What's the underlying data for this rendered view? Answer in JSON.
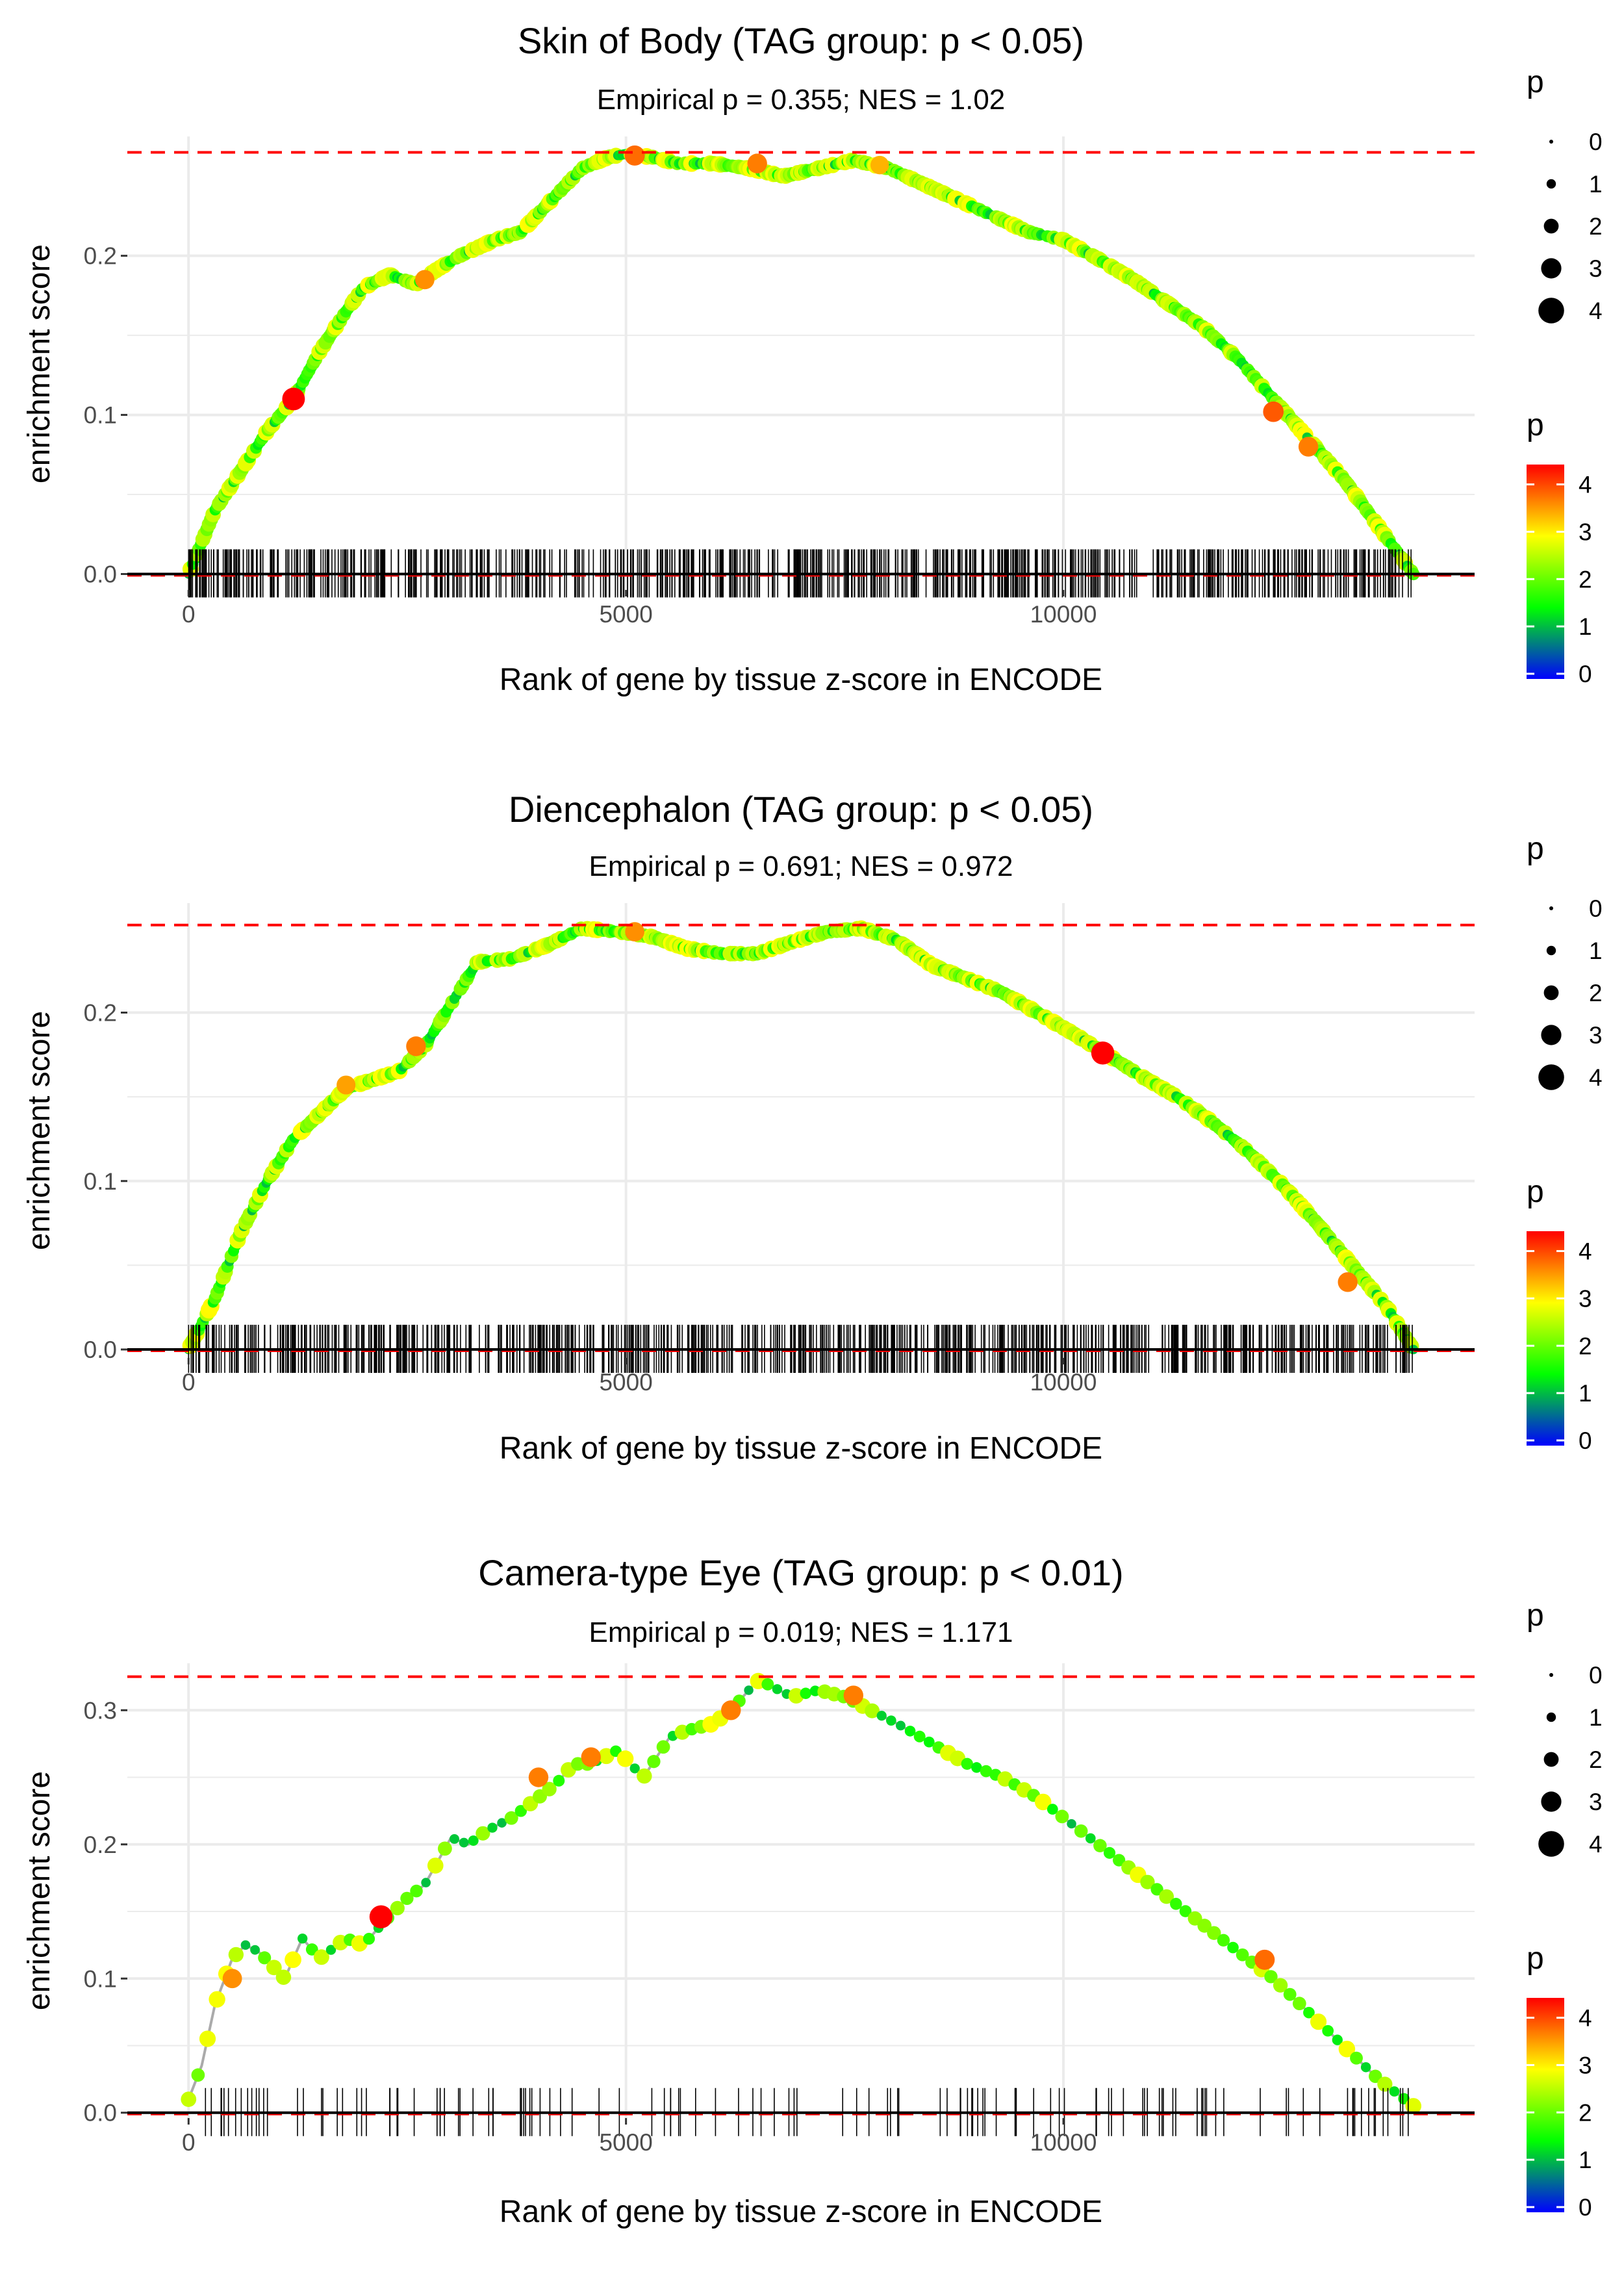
{
  "colors": {
    "background": "#ffffff",
    "grid": "#ebebeb",
    "max_line": "#ff0000",
    "baseline": "#000000",
    "running_line": "#aaaaaa",
    "colorbar_stops": [
      "#0000ff",
      "#00ff00",
      "#ffff00",
      "#ff0000"
    ]
  },
  "legend": {
    "size_title": "p",
    "size_labels": [
      "0",
      "1",
      "2",
      "3",
      "4"
    ],
    "color_title": "p",
    "color_labels": [
      "0",
      "1",
      "2",
      "3",
      "4"
    ]
  },
  "chart_data": [
    {
      "type": "line",
      "title": "Skin of Body (TAG group: p < 0.05)",
      "subtitle": "Empirical p = 0.355; NES = 1.02",
      "xlabel": "Rank of gene by tissue z-score in ENCODE",
      "ylabel": "enrichment score",
      "xlim": [
        -700,
        14700
      ],
      "ylim": [
        -0.01,
        0.275
      ],
      "xticks": [
        0,
        5000,
        10000
      ],
      "xtick_labels": [
        "0",
        "5000",
        "10000"
      ],
      "yticks": [
        0,
        0.1,
        0.2
      ],
      "ytick_labels": [
        "0.0",
        "0.1",
        "0.2"
      ],
      "max_es": 0.265,
      "series": [
        {
          "name": "running enrichment score",
          "x": [
            0,
            300,
            600,
            900,
            1200,
            1500,
            1800,
            2000,
            2300,
            2600,
            2800,
            3100,
            3500,
            3800,
            4200,
            4500,
            4800,
            5000,
            5300,
            5600,
            6000,
            6400,
            6800,
            7200,
            7600,
            8000,
            8400,
            8800,
            9200,
            9600,
            10000,
            10400,
            10800,
            11200,
            11600,
            12000,
            12400,
            12800,
            13200,
            13600,
            14000
          ],
          "y": [
            0.0,
            0.04,
            0.065,
            0.09,
            0.11,
            0.14,
            0.165,
            0.18,
            0.188,
            0.182,
            0.19,
            0.2,
            0.21,
            0.215,
            0.238,
            0.255,
            0.262,
            0.264,
            0.262,
            0.258,
            0.258,
            0.255,
            0.25,
            0.255,
            0.26,
            0.255,
            0.245,
            0.235,
            0.225,
            0.215,
            0.21,
            0.198,
            0.185,
            0.17,
            0.155,
            0.135,
            0.11,
            0.085,
            0.06,
            0.03,
            0.0
          ]
        }
      ],
      "highlight_points": [
        {
          "x": 1200,
          "y": 0.11,
          "p": 4.2
        },
        {
          "x": 2700,
          "y": 0.185,
          "p": 3.4
        },
        {
          "x": 5100,
          "y": 0.263,
          "p": 3.6
        },
        {
          "x": 6500,
          "y": 0.258,
          "p": 3.5
        },
        {
          "x": 7900,
          "y": 0.257,
          "p": 3.2
        },
        {
          "x": 12400,
          "y": 0.102,
          "p": 3.7
        },
        {
          "x": 12800,
          "y": 0.08,
          "p": 3.5
        }
      ],
      "n_hits": 700
    },
    {
      "type": "line",
      "title": "Diencephalon (TAG group: p < 0.05)",
      "subtitle": "Empirical p = 0.691; NES = 0.972",
      "xlabel": "Rank of gene by tissue z-score in ENCODE",
      "ylabel": "enrichment score",
      "xlim": [
        -700,
        14700
      ],
      "ylim": [
        -0.005,
        0.265
      ],
      "xticks": [
        0,
        5000,
        10000
      ],
      "xtick_labels": [
        "0",
        "5000",
        "10000"
      ],
      "yticks": [
        0,
        0.1,
        0.2
      ],
      "ytick_labels": [
        "0.0",
        "0.1",
        "0.2"
      ],
      "max_es": 0.252,
      "series": [
        {
          "name": "running enrichment score",
          "x": [
            0,
            300,
            600,
            900,
            1200,
            1500,
            1800,
            2100,
            2400,
            2700,
            3000,
            3300,
            3700,
            4100,
            4500,
            4900,
            5300,
            5700,
            6100,
            6500,
            6900,
            7300,
            7700,
            8100,
            8500,
            8900,
            9300,
            9700,
            10100,
            10500,
            10900,
            11300,
            11700,
            12100,
            12500,
            12900,
            13300,
            13700,
            14000
          ],
          "y": [
            0.0,
            0.03,
            0.07,
            0.1,
            0.125,
            0.14,
            0.155,
            0.16,
            0.165,
            0.18,
            0.205,
            0.23,
            0.232,
            0.24,
            0.25,
            0.248,
            0.245,
            0.238,
            0.235,
            0.235,
            0.242,
            0.248,
            0.25,
            0.243,
            0.228,
            0.22,
            0.212,
            0.2,
            0.188,
            0.175,
            0.162,
            0.15,
            0.135,
            0.118,
            0.098,
            0.075,
            0.05,
            0.025,
            0.0
          ]
        }
      ],
      "highlight_points": [
        {
          "x": 1800,
          "y": 0.157,
          "p": 3.3
        },
        {
          "x": 2600,
          "y": 0.18,
          "p": 3.5
        },
        {
          "x": 5100,
          "y": 0.248,
          "p": 3.4
        },
        {
          "x": 10450,
          "y": 0.176,
          "p": 4.3
        },
        {
          "x": 13250,
          "y": 0.04,
          "p": 3.5
        }
      ],
      "n_hits": 750
    },
    {
      "type": "line",
      "title": "Camera-type Eye (TAG group: p < 0.01)",
      "subtitle": "Empirical p = 0.019; NES = 1.171",
      "xlabel": "Rank of gene by tissue z-score in ENCODE",
      "ylabel": "enrichment score",
      "xlim": [
        -700,
        14700
      ],
      "ylim": [
        -0.004,
        0.335
      ],
      "xticks": [
        0,
        5000,
        10000
      ],
      "xtick_labels": [
        "0",
        "5000",
        "10000"
      ],
      "yticks": [
        0,
        0.1,
        0.2,
        0.3
      ],
      "ytick_labels": [
        "0.0",
        "0.1",
        "0.2",
        "0.3"
      ],
      "max_es": 0.325,
      "series": [
        {
          "name": "running enrichment score",
          "x": [
            0,
            150,
            300,
            500,
            650,
            800,
            1100,
            1300,
            1500,
            1800,
            2000,
            2200,
            2500,
            2700,
            3000,
            3200,
            3400,
            3700,
            3900,
            4200,
            4400,
            4600,
            4900,
            5200,
            5500,
            5700,
            6000,
            6200,
            6500,
            6600,
            6900,
            7200,
            7500,
            7800,
            8100,
            8500,
            8900,
            9300,
            9700,
            10000,
            10400,
            10800,
            11200,
            11600,
            12000,
            12400,
            12800,
            13200,
            13600,
            14000
          ],
          "y": [
            0.01,
            0.035,
            0.08,
            0.115,
            0.125,
            0.12,
            0.1,
            0.13,
            0.115,
            0.13,
            0.125,
            0.14,
            0.16,
            0.17,
            0.205,
            0.2,
            0.21,
            0.22,
            0.23,
            0.245,
            0.26,
            0.26,
            0.27,
            0.25,
            0.28,
            0.285,
            0.29,
            0.3,
            0.322,
            0.32,
            0.31,
            0.315,
            0.31,
            0.3,
            0.29,
            0.275,
            0.26,
            0.25,
            0.235,
            0.22,
            0.2,
            0.18,
            0.16,
            0.14,
            0.12,
            0.1,
            0.075,
            0.05,
            0.025,
            0.005
          ]
        }
      ],
      "highlight_points": [
        {
          "x": 500,
          "y": 0.1,
          "p": 3.4
        },
        {
          "x": 2200,
          "y": 0.146,
          "p": 4.3
        },
        {
          "x": 4000,
          "y": 0.25,
          "p": 3.5
        },
        {
          "x": 4600,
          "y": 0.265,
          "p": 3.5
        },
        {
          "x": 6200,
          "y": 0.3,
          "p": 3.5
        },
        {
          "x": 7600,
          "y": 0.311,
          "p": 3.5
        },
        {
          "x": 12300,
          "y": 0.114,
          "p": 3.6
        }
      ],
      "n_hits": 130
    }
  ]
}
